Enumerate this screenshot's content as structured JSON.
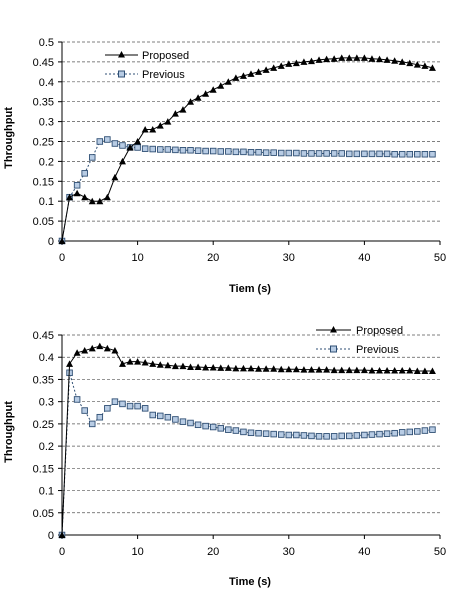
{
  "chart_data": [
    {
      "type": "line",
      "xlabel": "Tiem (s)",
      "ylabel": "Throughput",
      "xlim": [
        0,
        50
      ],
      "ylim": [
        0,
        0.5
      ],
      "xticks": [
        "0",
        "10",
        "20",
        "30",
        "40",
        "50"
      ],
      "yticks": [
        "0",
        "0.05",
        "0.1",
        "0.15",
        "0.2",
        "0.25",
        "0.3",
        "0.35",
        "0.4",
        "0.45",
        "0.5"
      ],
      "grid": "horizontal dashed",
      "legend_position": "top-left",
      "series": [
        {
          "name": "Proposed",
          "marker": "triangle",
          "line_style": "solid",
          "color": "#000000",
          "x": [
            0,
            1,
            2,
            3,
            4,
            5,
            6,
            7,
            8,
            9,
            10,
            11,
            12,
            13,
            14,
            15,
            16,
            17,
            18,
            19,
            20,
            21,
            22,
            23,
            24,
            25,
            26,
            27,
            28,
            29,
            30,
            31,
            32,
            33,
            34,
            35,
            36,
            37,
            38,
            39,
            40,
            41,
            42,
            43,
            44,
            45,
            46,
            47,
            48,
            49
          ],
          "y": [
            0,
            0.11,
            0.12,
            0.11,
            0.1,
            0.1,
            0.11,
            0.16,
            0.2,
            0.235,
            0.25,
            0.28,
            0.28,
            0.29,
            0.3,
            0.32,
            0.33,
            0.35,
            0.36,
            0.37,
            0.38,
            0.39,
            0.4,
            0.41,
            0.415,
            0.42,
            0.425,
            0.43,
            0.435,
            0.44,
            0.445,
            0.447,
            0.45,
            0.452,
            0.455,
            0.457,
            0.458,
            0.46,
            0.46,
            0.46,
            0.46,
            0.458,
            0.457,
            0.455,
            0.453,
            0.45,
            0.447,
            0.443,
            0.44,
            0.435
          ]
        },
        {
          "name": "Previous",
          "marker": "square",
          "line_style": "dashed",
          "color": "#2f4f74",
          "marker_fill": "#b8cce4",
          "x": [
            0,
            1,
            2,
            3,
            4,
            5,
            6,
            7,
            8,
            9,
            10,
            11,
            12,
            13,
            14,
            15,
            16,
            17,
            18,
            19,
            20,
            21,
            22,
            23,
            24,
            25,
            26,
            27,
            28,
            29,
            30,
            31,
            32,
            33,
            34,
            35,
            36,
            37,
            38,
            39,
            40,
            41,
            42,
            43,
            44,
            45,
            46,
            47,
            48,
            49
          ],
          "y": [
            0,
            0.11,
            0.14,
            0.17,
            0.21,
            0.25,
            0.255,
            0.245,
            0.24,
            0.235,
            0.235,
            0.232,
            0.231,
            0.23,
            0.23,
            0.229,
            0.228,
            0.228,
            0.227,
            0.226,
            0.226,
            0.225,
            0.225,
            0.224,
            0.224,
            0.223,
            0.223,
            0.222,
            0.222,
            0.221,
            0.221,
            0.221,
            0.22,
            0.22,
            0.22,
            0.22,
            0.22,
            0.22,
            0.219,
            0.219,
            0.219,
            0.219,
            0.219,
            0.219,
            0.218,
            0.218,
            0.218,
            0.218,
            0.218,
            0.218
          ]
        }
      ]
    },
    {
      "type": "line",
      "xlabel": "Time (s)",
      "ylabel": "Throughput",
      "xlim": [
        0,
        50
      ],
      "ylim": [
        0,
        0.45
      ],
      "xticks": [
        "0",
        "10",
        "20",
        "30",
        "40",
        "50"
      ],
      "yticks": [
        "0",
        "0.05",
        "0.1",
        "0.15",
        "0.2",
        "0.25",
        "0.3",
        "0.35",
        "0.4",
        "0.45"
      ],
      "grid": "horizontal dashed",
      "legend_position": "top-right",
      "series": [
        {
          "name": "Proposed",
          "marker": "triangle",
          "line_style": "solid",
          "color": "#000000",
          "x": [
            0,
            1,
            2,
            3,
            4,
            5,
            6,
            7,
            8,
            9,
            10,
            11,
            12,
            13,
            14,
            15,
            16,
            17,
            18,
            19,
            20,
            21,
            22,
            23,
            24,
            25,
            26,
            27,
            28,
            29,
            30,
            31,
            32,
            33,
            34,
            35,
            36,
            37,
            38,
            39,
            40,
            41,
            42,
            43,
            44,
            45,
            46,
            47,
            48,
            49
          ],
          "y": [
            0,
            0.385,
            0.41,
            0.415,
            0.42,
            0.425,
            0.42,
            0.415,
            0.385,
            0.39,
            0.39,
            0.388,
            0.385,
            0.383,
            0.382,
            0.38,
            0.38,
            0.378,
            0.378,
            0.377,
            0.377,
            0.376,
            0.376,
            0.375,
            0.375,
            0.375,
            0.374,
            0.374,
            0.374,
            0.373,
            0.373,
            0.373,
            0.372,
            0.372,
            0.372,
            0.372,
            0.371,
            0.371,
            0.371,
            0.371,
            0.371,
            0.37,
            0.37,
            0.37,
            0.37,
            0.37,
            0.37,
            0.369,
            0.369,
            0.369
          ]
        },
        {
          "name": "Previous",
          "marker": "square",
          "line_style": "dashed",
          "color": "#2f4f74",
          "marker_fill": "#b8cce4",
          "x": [
            0,
            1,
            2,
            3,
            4,
            5,
            6,
            7,
            8,
            9,
            10,
            11,
            12,
            13,
            14,
            15,
            16,
            17,
            18,
            19,
            20,
            21,
            22,
            23,
            24,
            25,
            26,
            27,
            28,
            29,
            30,
            31,
            32,
            33,
            34,
            35,
            36,
            37,
            38,
            39,
            40,
            41,
            42,
            43,
            44,
            45,
            46,
            47,
            48,
            49
          ],
          "y": [
            0,
            0.365,
            0.305,
            0.28,
            0.25,
            0.265,
            0.285,
            0.3,
            0.295,
            0.29,
            0.29,
            0.285,
            0.27,
            0.268,
            0.265,
            0.26,
            0.255,
            0.252,
            0.248,
            0.245,
            0.243,
            0.24,
            0.237,
            0.235,
            0.232,
            0.23,
            0.229,
            0.228,
            0.227,
            0.226,
            0.225,
            0.225,
            0.224,
            0.223,
            0.222,
            0.222,
            0.222,
            0.223,
            0.223,
            0.224,
            0.225,
            0.226,
            0.227,
            0.228,
            0.229,
            0.231,
            0.232,
            0.233,
            0.235,
            0.237
          ]
        }
      ]
    }
  ]
}
